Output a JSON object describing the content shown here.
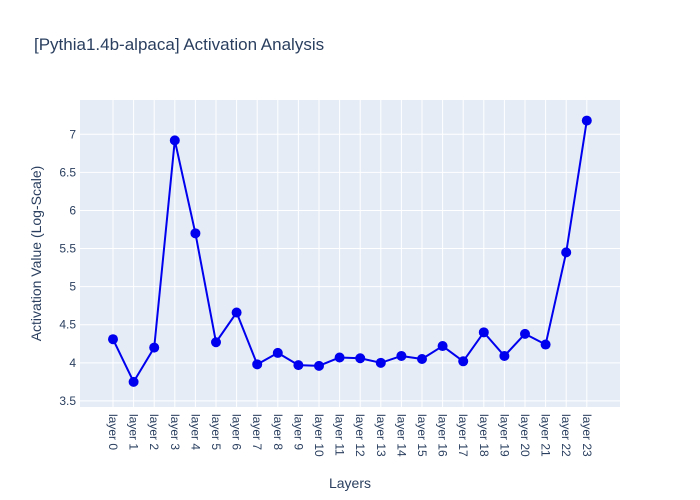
{
  "chart_data": {
    "type": "line",
    "title": "[Pythia1.4b-alpaca] Activation Analysis",
    "xlabel": "Layers",
    "ylabel": "Activation Value (Log-Scale)",
    "categories": [
      "layer 0",
      "layer 1",
      "layer 2",
      "layer 3",
      "layer 4",
      "layer 5",
      "layer 6",
      "layer 7",
      "layer 8",
      "layer 9",
      "layer 10",
      "layer 11",
      "layer 12",
      "layer 13",
      "layer 14",
      "layer 15",
      "layer 16",
      "layer 17",
      "layer 18",
      "layer 19",
      "layer 20",
      "layer 21",
      "layer 22",
      "layer 23"
    ],
    "series": [
      {
        "values": [
          4.31,
          3.75,
          4.2,
          6.92,
          5.7,
          4.27,
          4.66,
          3.98,
          4.13,
          3.97,
          3.96,
          4.07,
          4.06,
          4.0,
          4.09,
          4.05,
          4.22,
          4.02,
          4.4,
          4.09,
          4.38,
          4.24,
          5.45,
          7.18
        ],
        "color": "#0000ee"
      }
    ],
    "ylim": [
      3.42,
      7.45
    ],
    "yticks": [
      3.5,
      4,
      4.5,
      5,
      5.5,
      6,
      6.5,
      7
    ],
    "ytick_labels": [
      "3.5",
      "4",
      "4.5",
      "5",
      "5.5",
      "6",
      "6.5",
      "7"
    ],
    "grid": true,
    "legend": "none",
    "colors": {
      "plot_background": "#e5ecf6",
      "grid": "#ffffff",
      "text": "#2a3f5f"
    }
  }
}
